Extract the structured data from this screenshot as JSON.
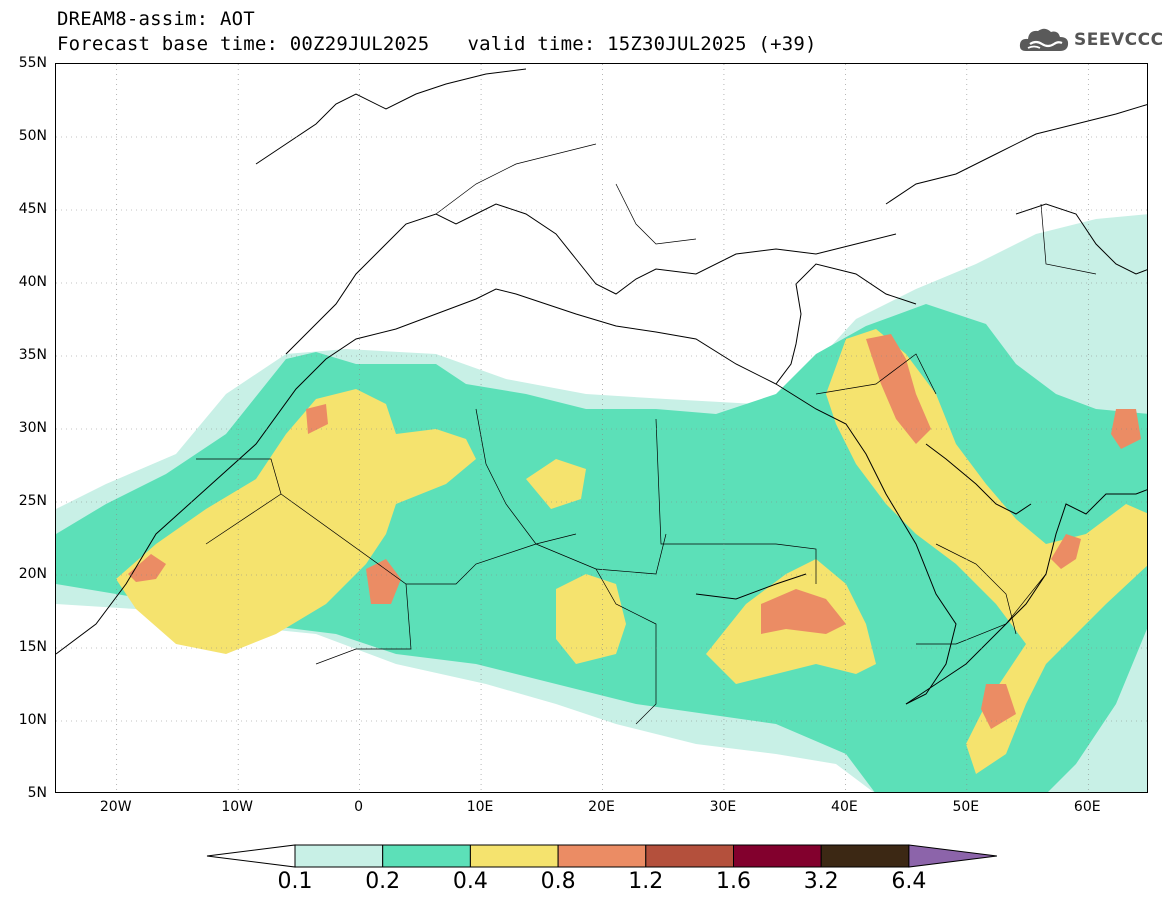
{
  "header": {
    "title_line1": "DREAM8-assim: AOT",
    "base_time": "Forecast base time: 00Z29JUL2025",
    "valid_time": "valid time: 15Z30JUL2025 (+39)"
  },
  "logo": {
    "icon": "cloud-logo-icon",
    "text": "SEEVCCC"
  },
  "map": {
    "lon_range": [
      -25,
      65
    ],
    "lat_range": [
      5,
      55
    ],
    "lat_ticks": [
      "55N",
      "50N",
      "45N",
      "40N",
      "35N",
      "30N",
      "25N",
      "20N",
      "15N",
      "10N",
      "5N"
    ],
    "lon_ticks": [
      "20W",
      "10W",
      "0",
      "10E",
      "20E",
      "30E",
      "40E",
      "50E",
      "60E"
    ],
    "grid": true
  },
  "colorbar": {
    "levels": [
      "0.1",
      "0.2",
      "0.4",
      "0.8",
      "1.2",
      "1.6",
      "3.2",
      "6.4"
    ],
    "colors": [
      "#ffffff",
      "#c8f0e6",
      "#5ce0b8",
      "#f5e36e",
      "#eb8c64",
      "#b4503c",
      "#82002d",
      "#3c2814",
      "#8c64aa"
    ]
  }
}
